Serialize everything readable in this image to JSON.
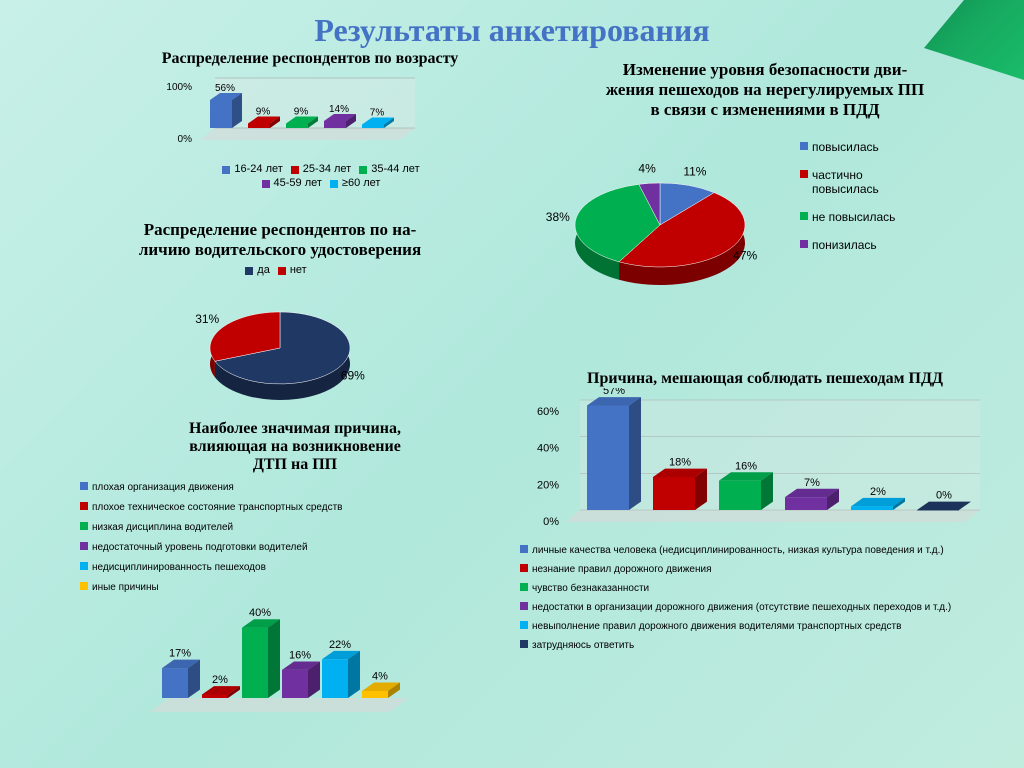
{
  "title": "Результаты анкетирования",
  "chart1": {
    "title": "Распределение респондентов по возрасту",
    "type": "bar3d",
    "categories": [
      "16-24 лет",
      "25-34 лет",
      "35-44 лет",
      "45-59 лет",
      "≥60 лет"
    ],
    "values": [
      56,
      9,
      9,
      14,
      7
    ],
    "colors": [
      "#4472c4",
      "#c00000",
      "#00b050",
      "#7030a0",
      "#00b0f0"
    ],
    "y_ticks": [
      "0%",
      "100%"
    ],
    "label_fontsize": 10
  },
  "chart2": {
    "title": "Распределение респондентов по на-\nличию водительского удостоверения",
    "type": "pie3d",
    "labels": [
      "да",
      "нет"
    ],
    "values": [
      69,
      31
    ],
    "colors": [
      "#203864",
      "#c00000"
    ],
    "label_fontsize": 11
  },
  "chart3": {
    "title": "Изменение уровня безопасности дви-\nжения пешеходов на нерегулируемых ПП\nв связи с изменениями в ПДД",
    "type": "pie3d",
    "labels": [
      "повысилась",
      "частично повысилась",
      "не повысилась",
      "понизилась"
    ],
    "values": [
      11,
      47,
      38,
      4
    ],
    "colors": [
      "#4472c4",
      "#c00000",
      "#00b050",
      "#7030a0"
    ],
    "label_fontsize": 12
  },
  "chart4": {
    "title": "Наиболее значимая причина,\nвлияющая на возникновение\nДТП на ПП",
    "type": "bar3d",
    "labels": [
      "плохая организация движения",
      "плохое техническое состояние транспортных средств",
      "низкая дисциплина водителей",
      "недостаточный уровень подготовки водителей",
      "недисциплинированность пешеходов",
      "иные причины"
    ],
    "values": [
      17,
      2,
      40,
      16,
      22,
      4
    ],
    "colors": [
      "#4472c4",
      "#c00000",
      "#00b050",
      "#7030a0",
      "#00b0f0",
      "#ffc000"
    ],
    "label_fontsize": 10
  },
  "chart5": {
    "title": "Причина, мешающая соблюдать пешеходам ПДД",
    "type": "bar3d",
    "labels": [
      "личные качества человека (недисциплинированность, низкая культура поведения и т.д.)",
      "незнание правил дорожного движения",
      "чувство безнаказанности",
      "недостатки в организации дорожного движения (отсутствие пешеходных переходов и т.д.)",
      "невыполнение правил дорожного движения водителями транспортных средств",
      "затрудняюсь ответить"
    ],
    "values": [
      57,
      18,
      16,
      7,
      2,
      0
    ],
    "colors": [
      "#4472c4",
      "#c00000",
      "#00b050",
      "#7030a0",
      "#00b0f0",
      "#203864"
    ],
    "y_ticks": [
      "0%",
      "20%",
      "40%",
      "60%"
    ],
    "label_fontsize": 10
  }
}
